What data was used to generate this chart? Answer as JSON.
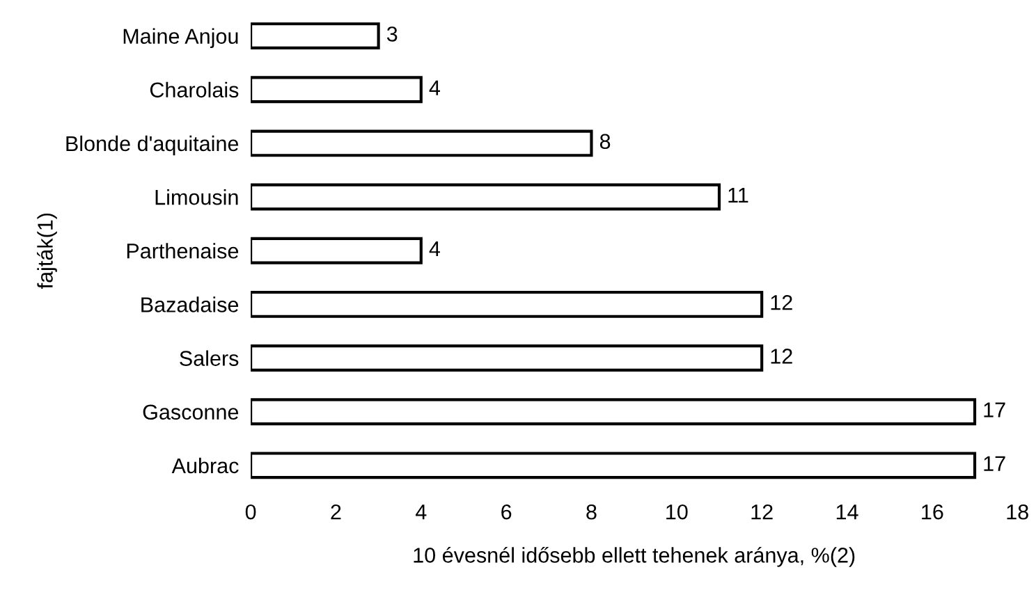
{
  "chart_data": {
    "type": "bar",
    "orientation": "horizontal",
    "xlabel": "10 évesnél idősebb ellett tehenek aránya, %(2)",
    "ylabel": "fajták(1)",
    "categories": [
      "Maine Anjou",
      "Charolais",
      "Blonde d'aquitaine",
      "Limousin",
      "Parthenaise",
      "Bazadaise",
      "Salers",
      "Gasconne",
      "Aubrac"
    ],
    "values": [
      3,
      4,
      8,
      11,
      4,
      12,
      12,
      17,
      17
    ],
    "color": "#ffffff",
    "xlim": [
      0,
      18
    ],
    "xticks": [
      0,
      2,
      4,
      6,
      8,
      10,
      12,
      14,
      16,
      18
    ],
    "data_labels": true,
    "grid": false,
    "legend": false
  }
}
